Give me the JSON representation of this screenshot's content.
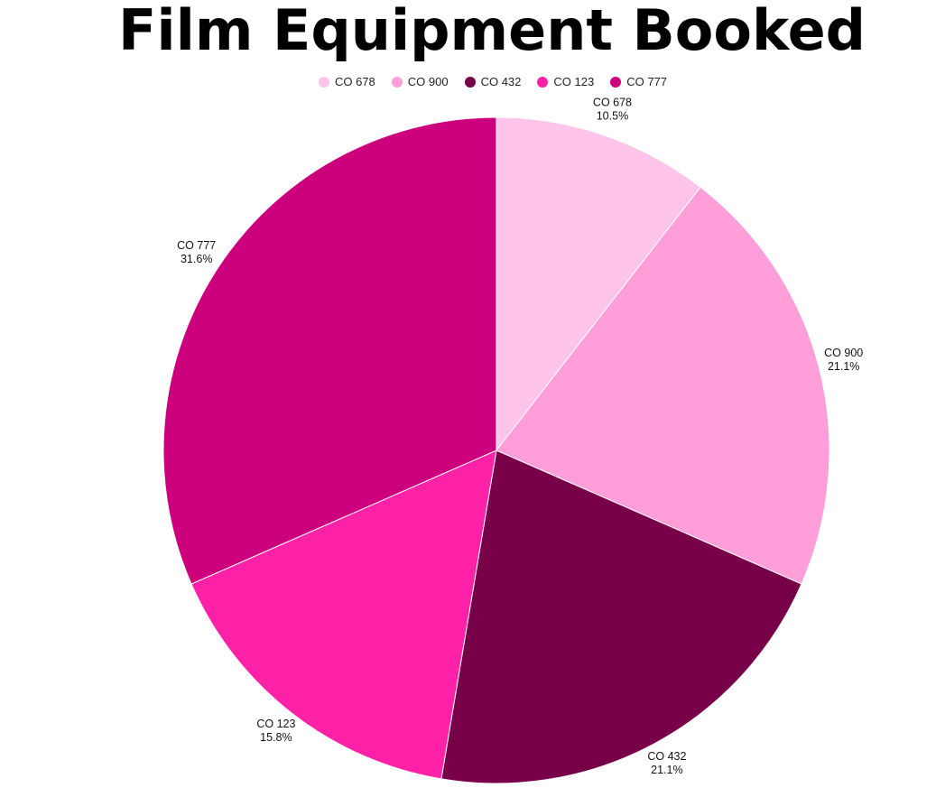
{
  "chart_data": {
    "type": "pie",
    "title": "Film Equipment Booked",
    "legend_position": "top",
    "slices": [
      {
        "name": "CO 678",
        "percent": 10.5,
        "percent_label": "10.5%",
        "color": "#ffc4ea"
      },
      {
        "name": "CO 900",
        "percent": 21.1,
        "percent_label": "21.1%",
        "color": "#ff9ed9"
      },
      {
        "name": "CO 432",
        "percent": 21.1,
        "percent_label": "21.1%",
        "color": "#770049"
      },
      {
        "name": "CO 123",
        "percent": 15.8,
        "percent_label": "15.8%",
        "color": "#ff22a8"
      },
      {
        "name": "CO 777",
        "percent": 31.6,
        "percent_label": "31.6%",
        "color": "#cc007c"
      }
    ]
  }
}
